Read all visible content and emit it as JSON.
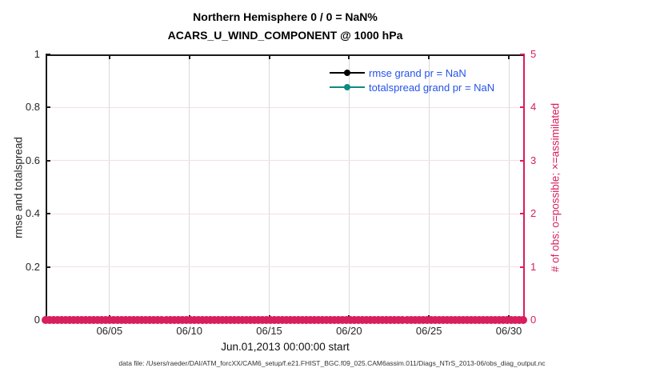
{
  "title": {
    "line1": "Northern Hemisphere 0 / 0 = NaN%",
    "line2": "ACARS_U_WIND_COMPONENT @ 1000 hPa"
  },
  "legend": {
    "items": [
      {
        "label": "rmse grand pr = NaN",
        "color": "#000000"
      },
      {
        "label": "totalspread grand pr = NaN",
        "color": "#0e8a85"
      }
    ],
    "text_color": "#2553e9"
  },
  "left_axis": {
    "label": "rmse and totalspread",
    "tick_labels": [
      "0",
      "0.2",
      "0.4",
      "0.6",
      "0.8",
      "1"
    ],
    "ticks": [
      0,
      0.2,
      0.4,
      0.6,
      0.8,
      1
    ],
    "ylim": [
      0,
      1
    ]
  },
  "right_axis": {
    "label": "# of obs: o=possible; ×=assimilated",
    "tick_labels": [
      "0",
      "1",
      "2",
      "3",
      "4",
      "5"
    ],
    "ticks": [
      0,
      1,
      2,
      3,
      4,
      5
    ],
    "ylim": [
      0,
      5
    ],
    "color": "#d81e5c"
  },
  "x_axis": {
    "label": "Jun.01,2013 00:00:00 start",
    "tick_labels": [
      "06/05",
      "06/10",
      "06/15",
      "06/20",
      "06/25",
      "06/30"
    ],
    "tick_days": [
      5,
      10,
      15,
      20,
      25,
      30
    ],
    "range_days": [
      1,
      31
    ]
  },
  "footer": "data file: /Users/raeder/DAI/ATM_forcXX/CAM6_setup/f.e21.FHIST_BGC.f09_025.CAM6assim.011/Diags_NTrS_2013-06/obs_diag_output.nc",
  "colors": {
    "obs_pink": "#d81e5c",
    "grid_pink": "#f4dee7",
    "grid_gray": "#d9d9d9",
    "rmse_black": "#000000",
    "totalspread_teal": "#0e8a85",
    "legend_blue": "#2553e9"
  },
  "chart_data": {
    "type": "line",
    "title": "Northern Hemisphere 0 / 0 = NaN%",
    "subtitle": "ACARS_U_WIND_COMPONENT @ 1000 hPa",
    "xlabel": "Jun.01,2013 00:00:00 start",
    "x_tick_labels": [
      "06/05",
      "06/10",
      "06/15",
      "06/20",
      "06/25",
      "06/30"
    ],
    "x_range": [
      "2013-06-01 00:00",
      "2013-07-01 00:00"
    ],
    "left_ylabel": "rmse and totalspread",
    "left_ylim": [
      0,
      1
    ],
    "right_ylabel": "# of obs: o=possible; ×=assimilated",
    "right_ylim": [
      0,
      5
    ],
    "grid": true,
    "legend_position": "upper-right-inside",
    "series": [
      {
        "name": "rmse",
        "axis": "left",
        "color": "#000000",
        "grand_pr": "NaN",
        "values": "NaN (nothing plotted)"
      },
      {
        "name": "totalspread",
        "axis": "left",
        "color": "#0e8a85",
        "grand_pr": "NaN",
        "values": "NaN (nothing plotted)"
      },
      {
        "name": "obs possible (o)",
        "axis": "right",
        "color": "#d81e5c",
        "constant_value": 0,
        "points_per_day": 4,
        "n_points": 120
      },
      {
        "name": "obs assimilated (×)",
        "axis": "right",
        "color": "#d81e5c",
        "constant_value": 0,
        "points_per_day": 4,
        "n_points": 120
      }
    ]
  }
}
